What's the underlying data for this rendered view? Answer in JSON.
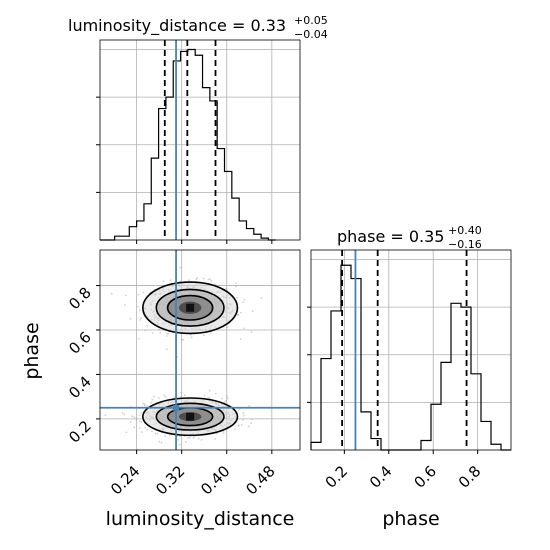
{
  "colors": {
    "truth": "#4682b4",
    "hist": "#000000",
    "grid": "#b0b0b0"
  },
  "chart_data": [
    {
      "type": "histogram",
      "parameter": "luminosity_distance",
      "title": "luminosity_distance = 0.33",
      "title_sup": "+0.05",
      "title_sub": "−0.04",
      "x_range": [
        0.175,
        0.53
      ],
      "bin_edges": [
        0.175,
        0.188,
        0.201,
        0.214,
        0.227,
        0.24,
        0.253,
        0.266,
        0.279,
        0.292,
        0.305,
        0.318,
        0.331,
        0.344,
        0.357,
        0.37,
        0.383,
        0.396,
        0.409,
        0.422,
        0.435,
        0.448,
        0.461,
        0.474,
        0.487
      ],
      "density": [
        0.0,
        0.0,
        0.02,
        0.02,
        0.07,
        0.1,
        0.19,
        0.43,
        0.69,
        0.75,
        0.94,
        0.99,
        1.0,
        0.97,
        0.8,
        0.73,
        0.48,
        0.36,
        0.22,
        0.1,
        0.06,
        0.03,
        0.01,
        0.0
      ],
      "quantiles": [
        0.29,
        0.33,
        0.38
      ],
      "truth": 0.31
    },
    {
      "type": "histogram",
      "parameter": "phase",
      "title": "phase = 0.35",
      "title_sup": "+0.40",
      "title_sub": "−0.16",
      "x_range": [
        0.05,
        0.95
      ],
      "x_ticks": [
        "0.2",
        "0.4",
        "0.6",
        "0.8"
      ],
      "x_tick_values": [
        0.2,
        0.4,
        0.6,
        0.8
      ],
      "xlabel": "phase",
      "bin_edges": [
        0.05,
        0.095,
        0.14,
        0.185,
        0.23,
        0.275,
        0.32,
        0.365,
        0.41,
        0.455,
        0.5,
        0.545,
        0.59,
        0.635,
        0.68,
        0.725,
        0.77,
        0.815,
        0.86,
        0.905,
        0.95
      ],
      "density": [
        0.04,
        0.48,
        0.73,
        0.97,
        0.9,
        0.2,
        0.06,
        0.0,
        0.0,
        0.0,
        0.0,
        0.05,
        0.24,
        0.46,
        0.77,
        0.75,
        0.4,
        0.15,
        0.03,
        0.0
      ],
      "quantiles": [
        0.19,
        0.35,
        0.75
      ],
      "truth": 0.25
    },
    {
      "type": "scatter_contour",
      "xlabel": "luminosity_distance",
      "ylabel": "phase",
      "x_range": [
        0.175,
        0.53
      ],
      "y_range": [
        0.06,
        0.96
      ],
      "x_ticks": [
        "0.24",
        "0.32",
        "0.40",
        "0.48"
      ],
      "x_tick_values": [
        0.24,
        0.32,
        0.4,
        0.48
      ],
      "y_ticks": [
        "0.2",
        "0.4",
        "0.6",
        "0.8"
      ],
      "y_tick_values": [
        0.2,
        0.4,
        0.6,
        0.8
      ],
      "truth": {
        "x": 0.31,
        "y": 0.25
      },
      "modes": [
        {
          "x": 0.335,
          "y": 0.7,
          "sx": 0.04,
          "sy": 0.055
        },
        {
          "x": 0.335,
          "y": 0.21,
          "sx": 0.04,
          "sy": 0.04
        }
      ]
    }
  ]
}
